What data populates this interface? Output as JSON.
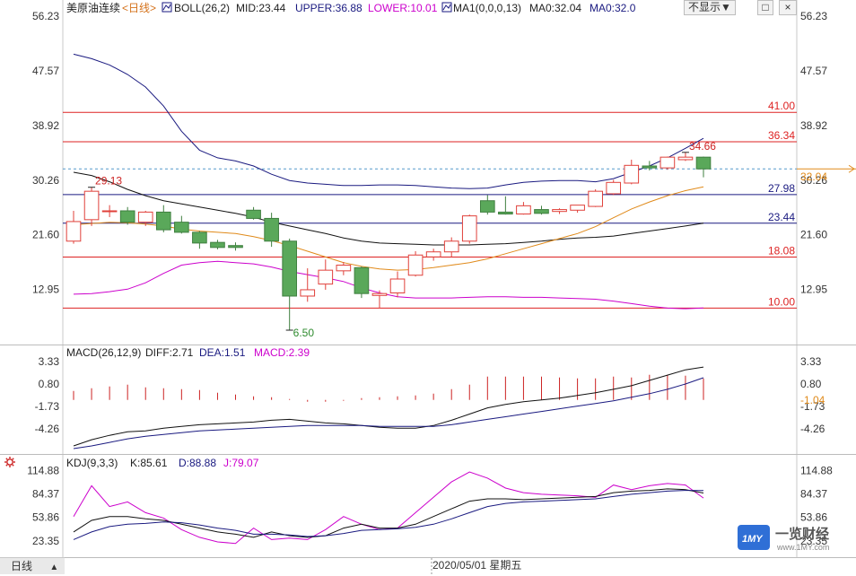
{
  "header": {
    "instrument": "美原油连续",
    "period_selector": "<日线>",
    "boll_legend": {
      "label": "BOLL(26,2)",
      "mid": "MID:23.44",
      "upper": "UPPER:36.88",
      "lower": "LOWER:10.01"
    },
    "ma_legend": {
      "label": "MA1(0,0,0,13)",
      "ma0_a": "MA0:32.04",
      "ma0_b": "MA0:32.0"
    },
    "hide_button": "不显示▼",
    "restore_button": "□",
    "close_button": "×"
  },
  "colors": {
    "up": "#e0403a",
    "down": "#5aa85a",
    "upper": "#1a1a80",
    "mid": "#111111",
    "lower": "#cc00cc",
    "ma": "#e08a1a",
    "hline": "#dd2222",
    "blue_line": "#1a1a80",
    "price_dashed": "#5599cc",
    "macd_bar": "#cc2222",
    "dea": "#1a1a80",
    "diff": "#111111"
  },
  "chart_data": [
    {
      "type": "candlestick",
      "title": "美原油连续 日线",
      "ylim": [
        6.5,
        56.23
      ],
      "y_ticks": [
        "56.23",
        "47.57",
        "38.92",
        "30.26",
        "21.60",
        "12.95"
      ],
      "candles": [
        {
          "o": 20.6,
          "h": 25.4,
          "l": 20.2,
          "c": 23.7
        },
        {
          "o": 24.0,
          "h": 29.13,
          "l": 23.0,
          "c": 28.5
        },
        {
          "o": 25.4,
          "h": 26.3,
          "l": 24.4,
          "c": 25.4
        },
        {
          "o": 25.4,
          "h": 26.0,
          "l": 23.2,
          "c": 23.6
        },
        {
          "o": 23.6,
          "h": 25.4,
          "l": 23.0,
          "c": 25.2
        },
        {
          "o": 25.2,
          "h": 26.3,
          "l": 22.0,
          "c": 22.4
        },
        {
          "o": 23.6,
          "h": 24.6,
          "l": 21.8,
          "c": 22.0
        },
        {
          "o": 22.0,
          "h": 22.2,
          "l": 19.4,
          "c": 20.3
        },
        {
          "o": 20.4,
          "h": 20.8,
          "l": 19.3,
          "c": 19.6
        },
        {
          "o": 19.9,
          "h": 20.4,
          "l": 19.1,
          "c": 19.6
        },
        {
          "o": 25.5,
          "h": 26.0,
          "l": 24.0,
          "c": 24.2
        },
        {
          "o": 24.2,
          "h": 25.1,
          "l": 19.7,
          "c": 20.6
        },
        {
          "o": 20.6,
          "h": 21.0,
          "l": 6.5,
          "c": 11.9
        },
        {
          "o": 11.9,
          "h": 16.3,
          "l": 11.0,
          "c": 12.9
        },
        {
          "o": 13.8,
          "h": 17.7,
          "l": 12.9,
          "c": 16.0
        },
        {
          "o": 15.9,
          "h": 17.3,
          "l": 15.2,
          "c": 16.8
        },
        {
          "o": 16.4,
          "h": 16.6,
          "l": 11.6,
          "c": 12.3
        },
        {
          "o": 12.0,
          "h": 12.8,
          "l": 10.0,
          "c": 12.3
        },
        {
          "o": 12.4,
          "h": 15.8,
          "l": 11.7,
          "c": 14.6
        },
        {
          "o": 15.2,
          "h": 19.0,
          "l": 15.0,
          "c": 18.4
        },
        {
          "o": 18.1,
          "h": 19.4,
          "l": 17.5,
          "c": 18.9
        },
        {
          "o": 18.9,
          "h": 21.2,
          "l": 18.1,
          "c": 20.6
        },
        {
          "o": 20.6,
          "h": 24.8,
          "l": 20.2,
          "c": 24.6
        },
        {
          "o": 27.0,
          "h": 27.9,
          "l": 24.8,
          "c": 25.2
        },
        {
          "o": 25.2,
          "h": 27.7,
          "l": 24.8,
          "c": 24.9
        },
        {
          "o": 24.9,
          "h": 26.8,
          "l": 24.8,
          "c": 26.2
        },
        {
          "o": 25.6,
          "h": 26.2,
          "l": 24.8,
          "c": 25.0
        },
        {
          "o": 25.3,
          "h": 25.8,
          "l": 24.9,
          "c": 25.6
        },
        {
          "o": 25.5,
          "h": 26.2,
          "l": 25.1,
          "c": 26.3
        },
        {
          "o": 26.1,
          "h": 28.8,
          "l": 26.0,
          "c": 28.5
        },
        {
          "o": 28.1,
          "h": 30.3,
          "l": 27.9,
          "c": 29.9
        },
        {
          "o": 29.8,
          "h": 33.5,
          "l": 29.6,
          "c": 32.6
        },
        {
          "o": 32.5,
          "h": 33.3,
          "l": 31.8,
          "c": 32.2
        },
        {
          "o": 32.2,
          "h": 34.0,
          "l": 31.9,
          "c": 33.9
        },
        {
          "o": 33.5,
          "h": 34.66,
          "l": 33.3,
          "c": 33.9
        },
        {
          "o": 33.9,
          "h": 34.0,
          "l": 30.7,
          "c": 32.04
        }
      ],
      "upper_band": [
        50.2,
        49.5,
        48.5,
        47.0,
        45.0,
        42.0,
        38.0,
        35.0,
        33.8,
        33.3,
        32.5,
        31.2,
        30.2,
        29.8,
        29.6,
        29.4,
        29.4,
        29.5,
        29.5,
        29.4,
        29.2,
        29.0,
        28.9,
        29.0,
        29.5,
        29.9,
        30.1,
        30.2,
        30.2,
        30.0,
        30.5,
        31.5,
        32.5,
        33.8,
        35.3,
        36.88
      ],
      "mid_band": [
        31.5,
        31.0,
        30.0,
        28.8,
        27.8,
        27.0,
        26.5,
        26.0,
        25.5,
        25.0,
        24.4,
        23.6,
        23.0,
        22.4,
        21.8,
        21.1,
        20.6,
        20.3,
        20.2,
        20.1,
        20.0,
        20.0,
        20.0,
        20.1,
        20.2,
        20.4,
        20.6,
        20.9,
        21.1,
        21.2,
        21.4,
        21.8,
        22.2,
        22.6,
        23.0,
        23.44
      ],
      "lower_band": [
        12.2,
        12.3,
        12.6,
        13.0,
        14.0,
        15.5,
        16.8,
        17.2,
        17.4,
        17.2,
        17.0,
        16.5,
        15.8,
        15.3,
        14.8,
        14.2,
        13.2,
        12.4,
        11.8,
        11.6,
        11.6,
        11.6,
        11.7,
        11.8,
        11.8,
        11.7,
        11.7,
        11.6,
        11.5,
        11.4,
        11.1,
        10.7,
        10.3,
        10.0,
        9.9,
        10.01
      ],
      "ma": [
        23.2,
        23.4,
        23.6,
        23.5,
        23.3,
        23.0,
        22.5,
        22.2,
        22.0,
        21.8,
        21.3,
        20.7,
        19.9,
        19.0,
        18.1,
        17.2,
        16.6,
        16.2,
        16.0,
        16.1,
        16.4,
        16.8,
        17.2,
        17.8,
        18.6,
        19.4,
        20.2,
        21.0,
        21.8,
        22.9,
        24.3,
        25.7,
        26.8,
        27.8,
        28.6,
        29.2
      ],
      "horizontal_lines": [
        {
          "value": 41.0,
          "label": "41.00",
          "kind": "red"
        },
        {
          "value": 36.34,
          "label": "36.34",
          "kind": "red"
        },
        {
          "value": 27.98,
          "label": "27.98",
          "kind": "blue"
        },
        {
          "value": 23.44,
          "label": "23.44",
          "kind": "blue"
        },
        {
          "value": 18.08,
          "label": "18.08",
          "kind": "red"
        },
        {
          "value": 10.0,
          "label": "10.00",
          "kind": "red"
        }
      ],
      "current_price": {
        "value": 32.04,
        "label": "32.04"
      },
      "annotations": [
        {
          "index": 1,
          "value": 29.13,
          "label": "29.13"
        },
        {
          "index": 34,
          "value": 34.66,
          "label": "34.66"
        },
        {
          "index": 12,
          "value": 6.5,
          "label": "6.50"
        }
      ]
    },
    {
      "type": "macd",
      "legend": {
        "label": "MACD(26,12,9)",
        "diff": "DIFF:2.71",
        "dea": "DEA:1.51",
        "macd": "MACD:2.39"
      },
      "ylim": [
        -6.5,
        3.33
      ],
      "y_ticks": [
        "3.33",
        "0.80",
        "-1.73",
        "-4.26"
      ],
      "current_label": "-1.04",
      "diff": [
        -6.2,
        -5.5,
        -5.0,
        -4.6,
        -4.5,
        -4.2,
        -4.0,
        -3.8,
        -3.7,
        -3.6,
        -3.5,
        -3.3,
        -3.2,
        -3.4,
        -3.6,
        -3.7,
        -3.9,
        -4.1,
        -4.2,
        -4.2,
        -3.9,
        -3.3,
        -2.6,
        -1.9,
        -1.5,
        -1.2,
        -1.0,
        -0.8,
        -0.5,
        -0.2,
        0.2,
        0.6,
        1.2,
        1.8,
        2.4,
        2.71
      ],
      "dea": [
        -6.5,
        -6.2,
        -5.8,
        -5.4,
        -5.1,
        -4.9,
        -4.7,
        -4.5,
        -4.4,
        -4.3,
        -4.2,
        -4.1,
        -4.0,
        -3.9,
        -3.9,
        -3.9,
        -3.9,
        -4.0,
        -4.0,
        -4.0,
        -4.0,
        -3.8,
        -3.5,
        -3.2,
        -2.9,
        -2.6,
        -2.3,
        -2.0,
        -1.7,
        -1.4,
        -1.1,
        -0.7,
        -0.3,
        0.2,
        0.8,
        1.51
      ],
      "macd_hist": [
        1.0,
        1.3,
        1.5,
        1.7,
        1.4,
        1.3,
        1.2,
        1.1,
        0.8,
        0.6,
        0.4,
        0.3,
        0.1,
        -0.2,
        -0.2,
        -0.1,
        0.2,
        0.3,
        0.4,
        0.5,
        0.7,
        1.2,
        1.7,
        2.6,
        2.6,
        2.6,
        2.6,
        2.5,
        2.4,
        2.4,
        2.6,
        2.5,
        2.8,
        2.8,
        2.7,
        2.39
      ]
    },
    {
      "type": "kdj",
      "legend": {
        "label": "KDJ(9,3,3)",
        "k": "K:85.61",
        "d": "D:88.88",
        "j": "J:79.07"
      },
      "ylim": [
        15,
        120
      ],
      "y_ticks": [
        "114.88",
        "84.37",
        "53.86",
        "23.35"
      ],
      "k": [
        35.0,
        50.0,
        55.0,
        55.0,
        52.0,
        50.0,
        45.0,
        40.0,
        35.0,
        32.0,
        28.0,
        35.0,
        30.0,
        28.0,
        30.0,
        40.0,
        45.0,
        40.0,
        40.0,
        45.0,
        55.0,
        65.0,
        75.0,
        78.0,
        78.0,
        77.0,
        78.0,
        79.0,
        80.0,
        81.0,
        86.0,
        88.0,
        89.0,
        91.0,
        90.0,
        85.61
      ],
      "d": [
        25.0,
        35.0,
        42.0,
        45.0,
        46.0,
        48.0,
        47.0,
        44.0,
        40.0,
        37.0,
        32.0,
        32.0,
        31.0,
        29.0,
        30.0,
        33.0,
        37.0,
        38.0,
        39.0,
        41.0,
        45.0,
        52.0,
        60.0,
        68.0,
        72.0,
        74.0,
        75.0,
        76.0,
        77.0,
        78.0,
        81.0,
        84.0,
        86.0,
        88.0,
        89.0,
        88.88
      ],
      "j": [
        55.0,
        95.0,
        68.0,
        74.0,
        60.0,
        53.0,
        38.0,
        28.0,
        22.0,
        20.0,
        40.0,
        25.0,
        27.0,
        25.0,
        38.0,
        55.0,
        45.0,
        38.0,
        40.0,
        60.0,
        80.0,
        100.0,
        113.0,
        105.0,
        92.0,
        86.0,
        84.0,
        83.0,
        82.0,
        80.0,
        96.0,
        90.0,
        95.0,
        98.0,
        96.0,
        79.07
      ]
    }
  ],
  "kdj_panel": {
    "settings_icon": "gear-icon"
  },
  "bottom_bar": {
    "tab_label": "日线",
    "date_label": "2020/05/01 星期五"
  },
  "watermark": {
    "logo_text": "一览财经",
    "logo_badge": "1MY",
    "url": "www.1MY.com"
  }
}
